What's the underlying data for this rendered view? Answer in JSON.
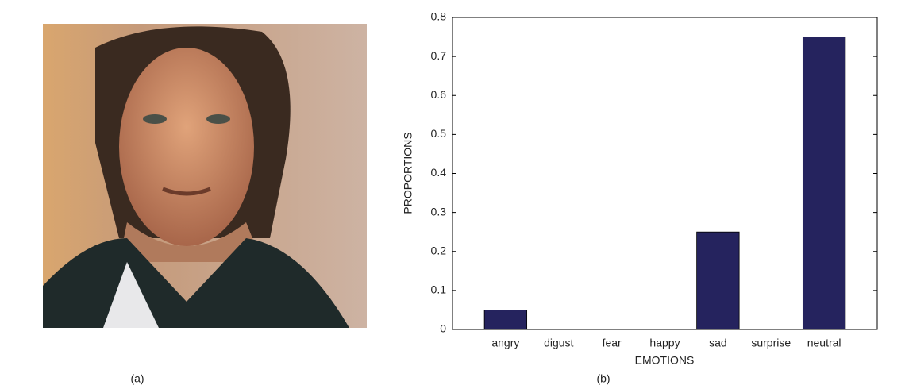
{
  "figure": {
    "captions": [
      "(a)",
      "(b)"
    ]
  },
  "chart_data": {
    "type": "bar",
    "xlabel": "EMOTIONS",
    "ylabel": "PROPORTIONS",
    "categories": [
      "angry",
      "digust",
      "fear",
      "happy",
      "sad",
      "surprise",
      "neutral"
    ],
    "values": [
      0.05,
      0,
      0,
      0,
      0.25,
      0,
      0.75
    ],
    "color": "#25235e",
    "ylim": [
      0,
      0.8
    ],
    "yticks": [
      0,
      0.1,
      0.2,
      0.3,
      0.4,
      0.5,
      0.6,
      0.7,
      0.8
    ]
  }
}
